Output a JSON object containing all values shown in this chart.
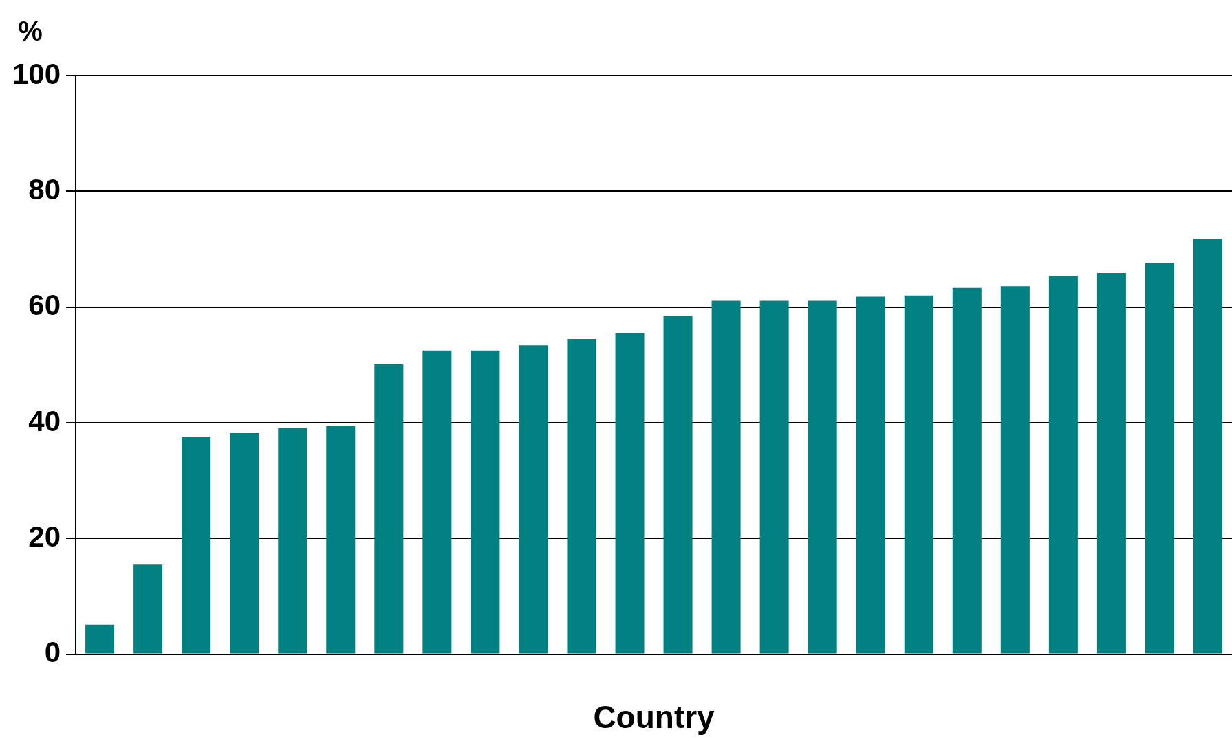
{
  "chart_data": {
    "type": "bar",
    "ylabel": "%",
    "xlabel": "Country",
    "categories": [
      null,
      null,
      null,
      null,
      null,
      null,
      null,
      null,
      null,
      null,
      null,
      null,
      null,
      null,
      null,
      null,
      null,
      null,
      null,
      null,
      null,
      null,
      null,
      null
    ],
    "values": [
      5.1,
      15.5,
      37.6,
      38.2,
      39.1,
      39.4,
      50.1,
      52.5,
      52.5,
      53.4,
      54.5,
      55.5,
      58.5,
      61.1,
      61.1,
      61.1,
      61.8,
      62.0,
      63.3,
      63.6,
      65.4,
      65.9,
      67.6,
      71.8
    ],
    "color": "#008080",
    "ylim": [
      0,
      100
    ],
    "yticks": [
      0,
      20,
      40,
      60,
      80,
      100
    ],
    "grid": "y",
    "legend": false
  }
}
